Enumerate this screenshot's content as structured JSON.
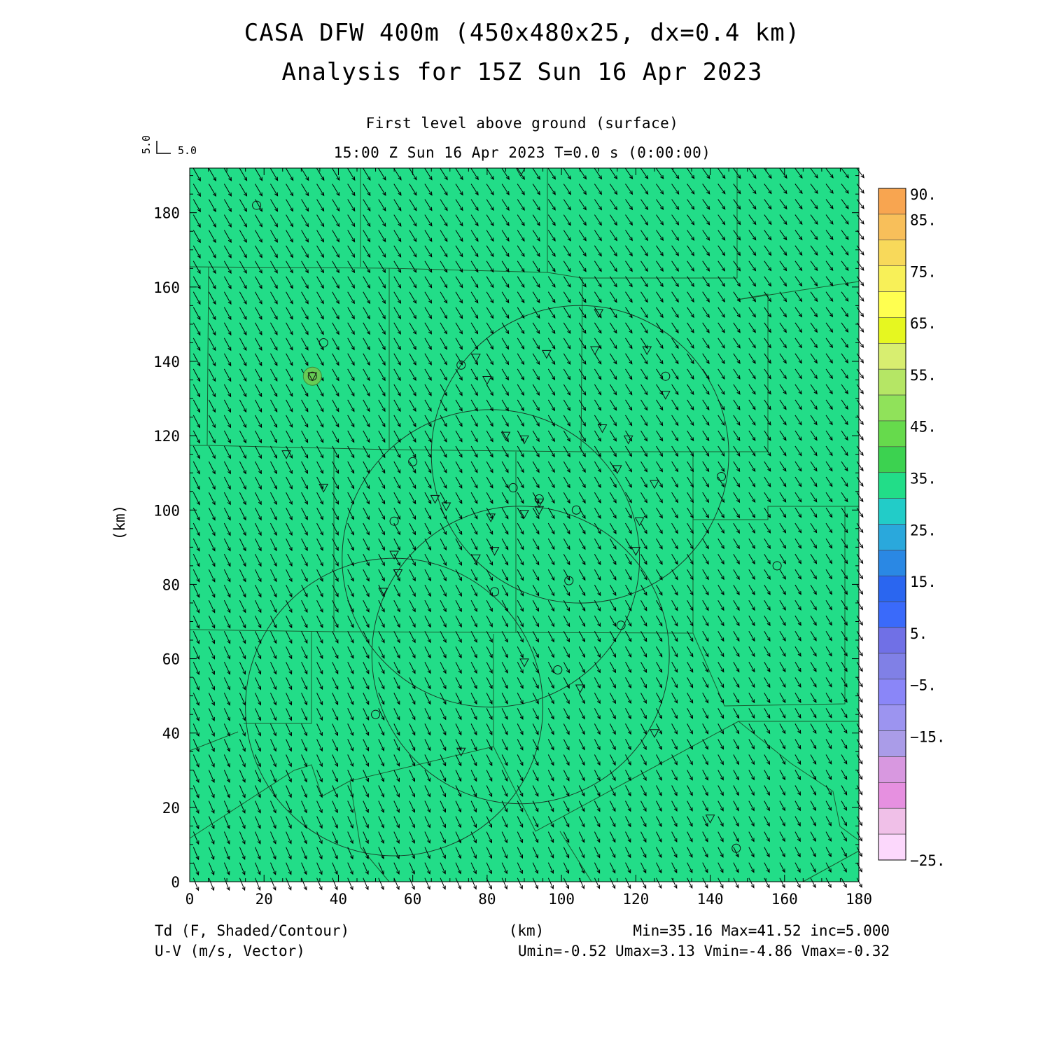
{
  "title_line1": "CASA DFW 400m (450x480x25, dx=0.4 km)",
  "title_line2": "Analysis for 15Z Sun 16 Apr 2023",
  "subtitle_level": "First level above ground (surface)",
  "subtitle_time": "15:00 Z Sun 16 Apr 2023   T=0.0 s (0:00:00)",
  "vector_scale": {
    "x_label": "5.0",
    "y_label": "5.0"
  },
  "axes": {
    "x_label": "(km)",
    "y_label": "(km)",
    "x_range": [
      0,
      180
    ],
    "y_range": [
      0,
      192
    ],
    "x_ticks": [
      "0",
      "20",
      "40",
      "60",
      "80",
      "100",
      "120",
      "140",
      "160",
      "180"
    ],
    "y_ticks": [
      "0",
      "20",
      "40",
      "60",
      "80",
      "100",
      "120",
      "140",
      "160",
      "180"
    ]
  },
  "field": {
    "variable": "Td (F, Shaded/Contour)",
    "vector_variable": "U-V (m/s, Vector)",
    "fill_color": "#22dd88",
    "stats": "Min=35.16 Max=41.52 inc=5.000",
    "vector_stats": "Umin=-0.52 Umax=3.13 Vmin=-4.86 Vmax=-0.32",
    "wind_u_typical": 1.3,
    "wind_v_typical": -3.2
  },
  "colorbar": {
    "bins": [
      {
        "color": "#f8a550"
      },
      {
        "color": "#f8bf5a"
      },
      {
        "color": "#f8d95a"
      },
      {
        "color": "#f8f058"
      },
      {
        "color": "#ffff50"
      },
      {
        "color": "#e6f720"
      },
      {
        "color": "#d8ee70"
      },
      {
        "color": "#b5e665"
      },
      {
        "color": "#90e25a"
      },
      {
        "color": "#66da4c"
      },
      {
        "color": "#3cd250"
      },
      {
        "color": "#22dd88"
      },
      {
        "color": "#22ccc8"
      },
      {
        "color": "#2aa8dc"
      },
      {
        "color": "#2a88e4"
      },
      {
        "color": "#2a66f0"
      },
      {
        "color": "#3a6afa"
      },
      {
        "color": "#7070e6"
      },
      {
        "color": "#8080e6"
      },
      {
        "color": "#8a86f8"
      },
      {
        "color": "#9c94f0"
      },
      {
        "color": "#aa9ce8"
      },
      {
        "color": "#d898e0"
      },
      {
        "color": "#e690e0"
      },
      {
        "color": "#f0c0e8"
      },
      {
        "color": "#fcd8fc"
      }
    ],
    "labels": [
      "90.",
      "85.",
      "75.",
      "65.",
      "55.",
      "45.",
      "35.",
      "25.",
      "15.",
      "5.",
      "−5.",
      "−15.",
      "−25."
    ]
  },
  "radar_rings": [
    {
      "name": "ring-northeast",
      "cx": 105,
      "cy": 115,
      "r": 40
    },
    {
      "name": "ring-center",
      "cx": 81,
      "cy": 87,
      "r": 40
    },
    {
      "name": "ring-south",
      "cx": 89,
      "cy": 61,
      "r": 40
    },
    {
      "name": "ring-southwest",
      "cx": 55,
      "cy": 47,
      "r": 40
    }
  ],
  "stations_circle": [
    [
      18,
      182
    ],
    [
      36,
      145
    ],
    [
      73,
      139
    ],
    [
      60,
      113
    ],
    [
      55,
      97
    ],
    [
      87,
      106
    ],
    [
      94,
      103
    ],
    [
      104,
      100
    ],
    [
      128,
      136
    ],
    [
      143,
      109
    ],
    [
      158,
      85
    ],
    [
      102,
      81
    ],
    [
      82,
      78
    ],
    [
      116,
      69
    ],
    [
      99,
      57
    ],
    [
      50,
      45
    ],
    [
      147,
      9
    ],
    [
      33,
      136
    ]
  ],
  "stations_triangle": [
    [
      89,
      191
    ],
    [
      110,
      153
    ],
    [
      123,
      143
    ],
    [
      77,
      141
    ],
    [
      96,
      142
    ],
    [
      109,
      143
    ],
    [
      128,
      131
    ],
    [
      80,
      135
    ],
    [
      111,
      122
    ],
    [
      118,
      119
    ],
    [
      85,
      120
    ],
    [
      90,
      119
    ],
    [
      26,
      115
    ],
    [
      36,
      106
    ],
    [
      115,
      111
    ],
    [
      125,
      107
    ],
    [
      66,
      103
    ],
    [
      69,
      101
    ],
    [
      94,
      102
    ],
    [
      94,
      100
    ],
    [
      90,
      99
    ],
    [
      81,
      98
    ],
    [
      121,
      97
    ],
    [
      55,
      88
    ],
    [
      77,
      87
    ],
    [
      82,
      89
    ],
    [
      120,
      89
    ],
    [
      56,
      83
    ],
    [
      52,
      78
    ],
    [
      90,
      59
    ],
    [
      105,
      52
    ],
    [
      125,
      40
    ],
    [
      73,
      35
    ],
    [
      140,
      17
    ],
    [
      33,
      136
    ]
  ]
}
